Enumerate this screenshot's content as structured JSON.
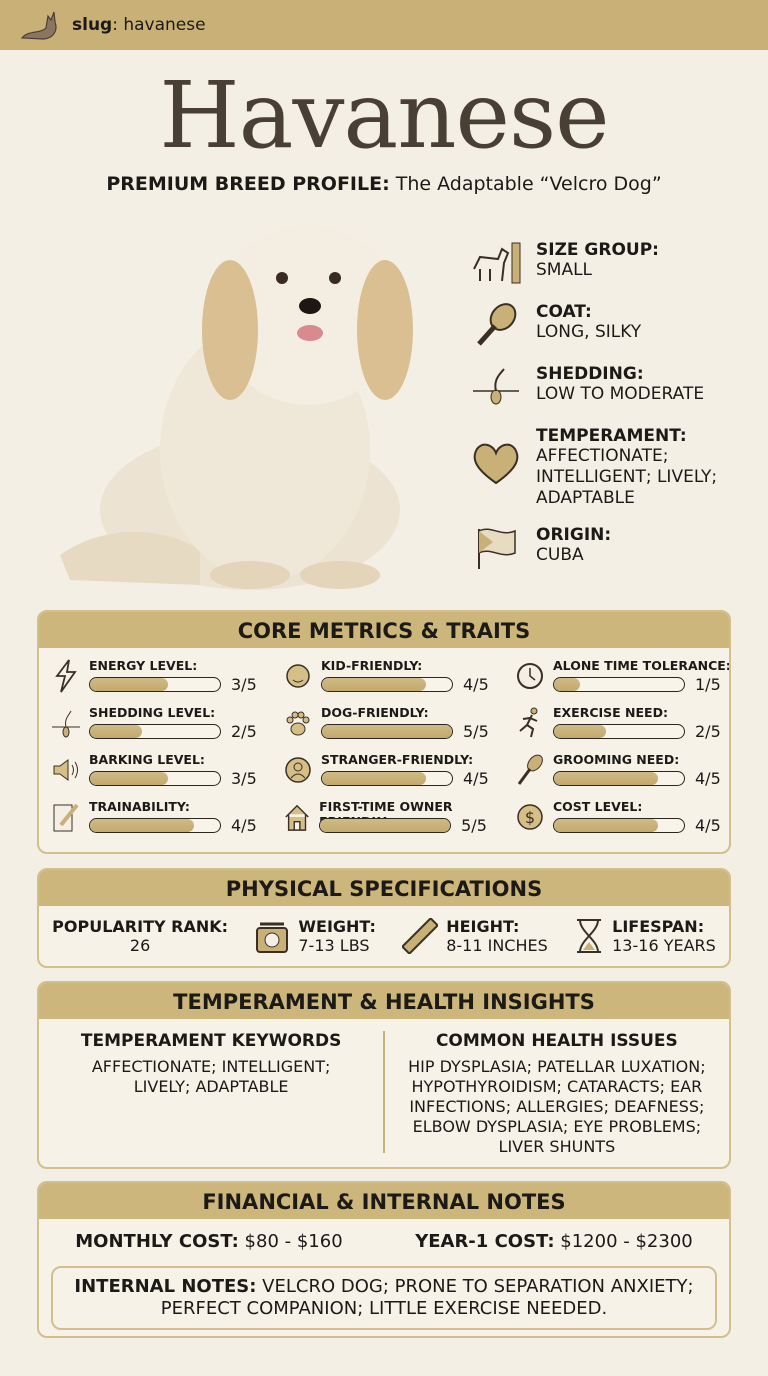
{
  "header": {
    "slug_label": "slug",
    "slug_value": ": havanese"
  },
  "title": "Havanese",
  "subtitle": {
    "bold": "PREMIUM BREED PROFILE:",
    "text": " The Adaptable “Velcro Dog”"
  },
  "facts": [
    {
      "label": "SIZE GROUP:",
      "value": "SMALL",
      "icon": "dog-ruler-icon"
    },
    {
      "label": "COAT:",
      "value": "LONG, SILKY",
      "icon": "brush-icon"
    },
    {
      "label": "SHEDDING:",
      "value": "LOW TO MODERATE",
      "icon": "hair-follicle-icon"
    },
    {
      "label": "TEMPERAMENT:",
      "value": "AFFECTIONATE; INTELLIGENT; LIVELY; ADAPTABLE",
      "icon": "heart-brain-icon"
    },
    {
      "label": "ORIGIN:",
      "value": "CUBA",
      "icon": "flag-icon"
    }
  ],
  "core": {
    "title": "CORE METRICS & TRAITS",
    "items": [
      {
        "label": "ENERGY LEVEL:",
        "score": "3/5",
        "value": 3,
        "icon": "lightning-icon"
      },
      {
        "label": "KID-FRIENDLY:",
        "score": "4/5",
        "value": 4,
        "icon": "child-face-icon"
      },
      {
        "label": "ALONE TIME TOLERANCE:",
        "score": "1/5",
        "value": 1,
        "icon": "clock-icon"
      },
      {
        "label": "SHEDDING LEVEL:",
        "score": "2/5",
        "value": 2,
        "icon": "hair-follicle-icon"
      },
      {
        "label": "DOG-FRIENDLY:",
        "score": "5/5",
        "value": 5,
        "icon": "paw-icon"
      },
      {
        "label": "EXERCISE NEED:",
        "score": "2/5",
        "value": 2,
        "icon": "runner-icon"
      },
      {
        "label": "BARKING LEVEL:",
        "score": "3/5",
        "value": 3,
        "icon": "speaker-icon"
      },
      {
        "label": "STRANGER-FRIENDLY:",
        "score": "4/5",
        "value": 4,
        "icon": "person-icon"
      },
      {
        "label": "GROOMING NEED:",
        "score": "4/5",
        "value": 4,
        "icon": "brush-icon"
      },
      {
        "label": "TRAINABILITY:",
        "score": "4/5",
        "value": 4,
        "icon": "pencil-notepad-icon"
      },
      {
        "label": "FIRST-TIME OWNER FRIENDLY:",
        "score": "5/5",
        "value": 5,
        "icon": "house-icon"
      },
      {
        "label": "COST LEVEL:",
        "score": "4/5",
        "value": 4,
        "icon": "dollar-icon"
      }
    ]
  },
  "physical": {
    "title": "PHYSICAL SPECIFICATIONS",
    "items": [
      {
        "label": "POPULARITY RANK:",
        "value": "26"
      },
      {
        "label": "WEIGHT:",
        "value": "7-13 LBS",
        "icon": "scale-icon"
      },
      {
        "label": "HEIGHT:",
        "value": "8-11 INCHES",
        "icon": "ruler-icon"
      },
      {
        "label": "LIFESPAN:",
        "value": "13-16 YEARS",
        "icon": "hourglass-icon"
      }
    ]
  },
  "insights": {
    "title": "TEMPERAMENT & HEALTH INSIGHTS",
    "temperament_heading": "TEMPERAMENT KEYWORDS",
    "temperament_text": "AFFECTIONATE; INTELLIGENT; LIVELY; ADAPTABLE",
    "health_heading": "COMMON HEALTH ISSUES",
    "health_text": "HIP DYSPLASIA; PATELLAR LUXATION; HYPOTHYROIDISM; CATARACTS; EAR INFECTIONS; ALLERGIES; DEAFNESS; ELBOW DYSPLASIA; EYE PROBLEMS; LIVER SHUNTS"
  },
  "financial": {
    "title": "FINANCIAL & INTERNAL NOTES",
    "monthly_label": "MONTHLY COST:",
    "monthly_value": " $80 - $160",
    "year1_label": "YEAR-1 COST:",
    "year1_value": " $1200 - $2300",
    "notes_label": "INTERNAL NOTES:",
    "notes_value": " VELCRO DOG; PRONE TO SEPARATION ANXIETY; PERFECT COMPANION; LITTLE EXERCISE NEEDED."
  },
  "colors": {
    "band": "#c9b077",
    "background": "#f4efe4",
    "bar_fill": "#c8b07a",
    "title": "#4a3f35"
  }
}
